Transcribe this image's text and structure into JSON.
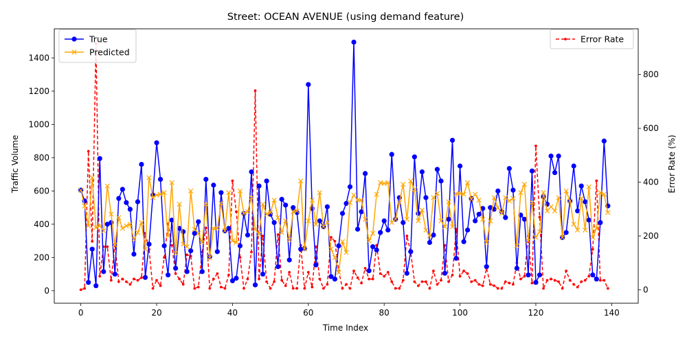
{
  "chart_data": {
    "type": "line",
    "title": "Street: OCEAN AVENUE (using demand feature)",
    "xlabel": "Time Index",
    "ylabel": "Traffic Volume",
    "y2label": "Error Rate (%)",
    "xlim": [
      -7,
      147
    ],
    "ylim": [
      -75,
      1575
    ],
    "y2lim": [
      -50,
      970
    ],
    "x_ticks": [
      0,
      20,
      40,
      60,
      80,
      100,
      120,
      140
    ],
    "y_ticks": [
      0,
      200,
      400,
      600,
      800,
      1000,
      1200,
      1400
    ],
    "y2_ticks": [
      0,
      200,
      400,
      600,
      800
    ],
    "grid": false,
    "legend_left": {
      "placement": "upper-left",
      "entries": [
        "True",
        "Predicted"
      ]
    },
    "legend_right": {
      "placement": "upper-right",
      "entries": [
        "Error Rate"
      ]
    },
    "series": [
      {
        "name": "True",
        "axis": "left",
        "color": "#0000ff",
        "style": "solid",
        "marker": "circle",
        "values": [
          605,
          540,
          50,
          250,
          30,
          795,
          115,
          400,
          410,
          100,
          555,
          610,
          530,
          490,
          220,
          535,
          760,
          80,
          280,
          575,
          890,
          670,
          270,
          95,
          425,
          135,
          375,
          355,
          115,
          240,
          345,
          415,
          115,
          670,
          205,
          635,
          235,
          590,
          360,
          375,
          60,
          75,
          270,
          465,
          335,
          715,
          35,
          630,
          100,
          660,
          460,
          410,
          145,
          550,
          515,
          185,
          500,
          470,
          250,
          255,
          1240,
          495,
          155,
          420,
          385,
          505,
          85,
          70,
          270,
          465,
          525,
          625,
          1495,
          370,
          475,
          705,
          120,
          265,
          245,
          350,
          420,
          365,
          820,
          430,
          560,
          410,
          105,
          235,
          805,
          465,
          715,
          560,
          290,
          335,
          730,
          660,
          105,
          430,
          905,
          195,
          750,
          295,
          365,
          555,
          420,
          460,
          495,
          145,
          500,
          490,
          600,
          475,
          440,
          735,
          605,
          135,
          455,
          430,
          95,
          720,
          50,
          95,
          565,
          520,
          810,
          710,
          810,
          320,
          350,
          540,
          750,
          480,
          630,
          535,
          425,
          95,
          70,
          410,
          900,
          510
        ]
      },
      {
        "name": "Predicted",
        "axis": "left",
        "color": "#ffa500",
        "style": "solid",
        "marker": "x",
        "values": [
          605,
          510,
          390,
          680,
          380,
          390,
          360,
          630,
          460,
          275,
          440,
          375,
          390,
          400,
          310,
          350,
          410,
          250,
          680,
          560,
          575,
          580,
          590,
          330,
          650,
          225,
          520,
          280,
          265,
          600,
          370,
          345,
          290,
          520,
          200,
          375,
          375,
          525,
          360,
          590,
          300,
          290,
          600,
          465,
          475,
          560,
          370,
          340,
          520,
          460,
          470,
          545,
          440,
          350,
          420,
          305,
          475,
          480,
          660,
          250,
          420,
          545,
          400,
          590,
          385,
          410,
          250,
          200,
          110,
          295,
          230,
          530,
          575,
          545,
          545,
          430,
          300,
          345,
          580,
          650,
          645,
          650,
          410,
          430,
          530,
          640,
          430,
          660,
          610,
          420,
          485,
          365,
          330,
          560,
          585,
          420,
          385,
          535,
          385,
          585,
          585,
          580,
          650,
          550,
          580,
          545,
          430,
          290,
          420,
          560,
          500,
          465,
          560,
          540,
          555,
          270,
          590,
          640,
          300,
          530,
          320,
          355,
          590,
          480,
          505,
          480,
          560,
          320,
          600,
          540,
          400,
          365,
          555,
          365,
          625,
          320,
          375,
          590,
          580,
          470
        ]
      },
      {
        "name": "Error Rate",
        "axis": "right",
        "color": "#ff0000",
        "style": "dashed",
        "marker": "dot",
        "values": [
          0,
          5,
          515,
          180,
          915,
          50,
          160,
          160,
          35,
          170,
          30,
          40,
          30,
          20,
          40,
          35,
          45,
          210,
          150,
          5,
          35,
          15,
          120,
          245,
          165,
          60,
          40,
          20,
          130,
          125,
          5,
          10,
          140,
          230,
          5,
          40,
          60,
          10,
          5,
          55,
          405,
          290,
          120,
          5,
          40,
          140,
          740,
          40,
          200,
          30,
          5,
          30,
          205,
          35,
          15,
          65,
          5,
          5,
          165,
          5,
          65,
          10,
          160,
          40,
          5,
          20,
          195,
          180,
          70,
          5,
          20,
          5,
          70,
          45,
          25,
          80,
          40,
          40,
          165,
          60,
          50,
          65,
          30,
          5,
          5,
          35,
          200,
          140,
          30,
          15,
          30,
          30,
          5,
          70,
          20,
          35,
          165,
          30,
          55,
          225,
          50,
          70,
          60,
          30,
          35,
          20,
          15,
          80,
          20,
          15,
          5,
          5,
          30,
          25,
          20,
          100,
          40,
          50,
          200,
          25,
          535,
          270,
          5,
          35,
          40,
          35,
          30,
          5,
          70,
          35,
          20,
          10,
          30,
          35,
          50,
          150,
          405,
          35,
          35,
          5
        ]
      }
    ]
  }
}
